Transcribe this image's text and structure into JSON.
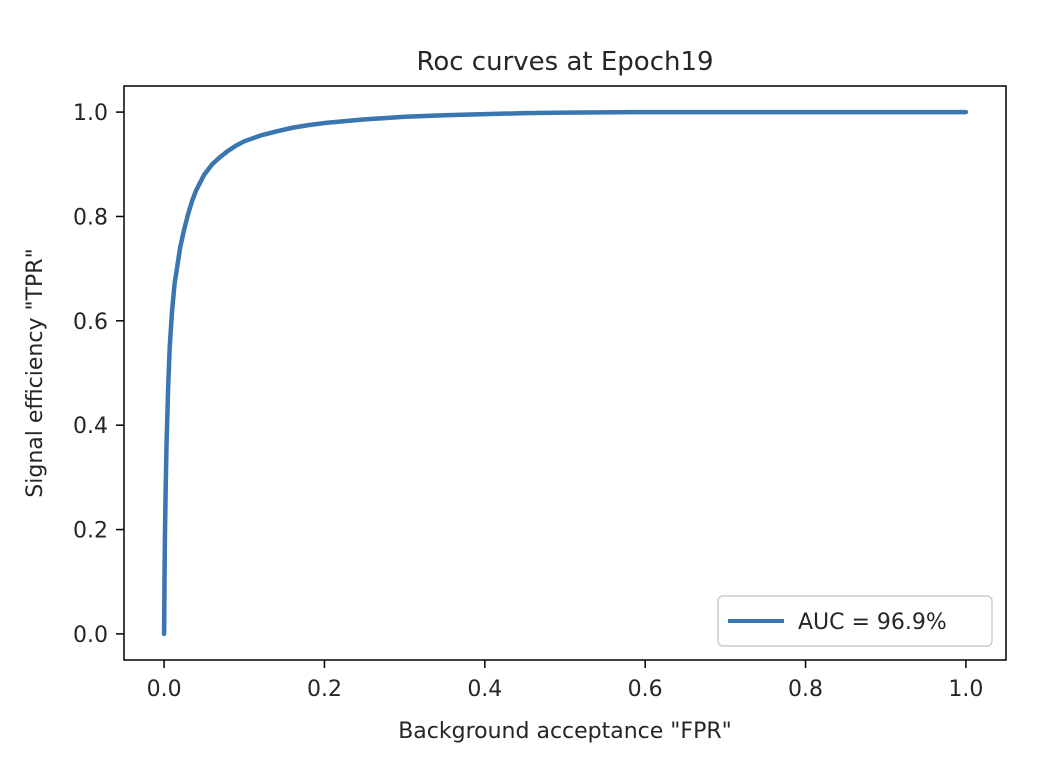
{
  "chart_data": {
    "type": "line",
    "title": "Roc curves at Epoch19",
    "xlabel": "Background acceptance \"FPR\"",
    "ylabel": "Signal efficiency \"TPR\"",
    "xlim": [
      -0.05,
      1.05
    ],
    "ylim": [
      -0.05,
      1.05
    ],
    "xticks": [
      0.0,
      0.2,
      0.4,
      0.6,
      0.8,
      1.0
    ],
    "xtick_labels": [
      "0.0",
      "0.2",
      "0.4",
      "0.6",
      "0.8",
      "1.0"
    ],
    "yticks": [
      0.0,
      0.2,
      0.4,
      0.6,
      0.8,
      1.0
    ],
    "ytick_labels": [
      "0.0",
      "0.2",
      "0.4",
      "0.6",
      "0.8",
      "1.0"
    ],
    "grid": false,
    "legend_position": "lower-right",
    "series": [
      {
        "name": "AUC = 96.9%",
        "color": "#3a76af",
        "x": [
          0.0,
          0.0005,
          0.001,
          0.002,
          0.003,
          0.005,
          0.007,
          0.01,
          0.013,
          0.016,
          0.02,
          0.025,
          0.03,
          0.035,
          0.04,
          0.05,
          0.06,
          0.07,
          0.08,
          0.09,
          0.1,
          0.12,
          0.14,
          0.16,
          0.18,
          0.2,
          0.25,
          0.3,
          0.35,
          0.4,
          0.45,
          0.5,
          0.6,
          0.7,
          0.8,
          0.9,
          1.0
        ],
        "y": [
          0.0,
          0.1,
          0.18,
          0.28,
          0.36,
          0.47,
          0.55,
          0.62,
          0.67,
          0.7,
          0.74,
          0.775,
          0.805,
          0.83,
          0.85,
          0.88,
          0.9,
          0.914,
          0.926,
          0.936,
          0.944,
          0.955,
          0.963,
          0.97,
          0.975,
          0.979,
          0.986,
          0.991,
          0.994,
          0.996,
          0.998,
          0.999,
          1.0,
          1.0,
          1.0,
          1.0,
          1.0
        ]
      }
    ]
  }
}
